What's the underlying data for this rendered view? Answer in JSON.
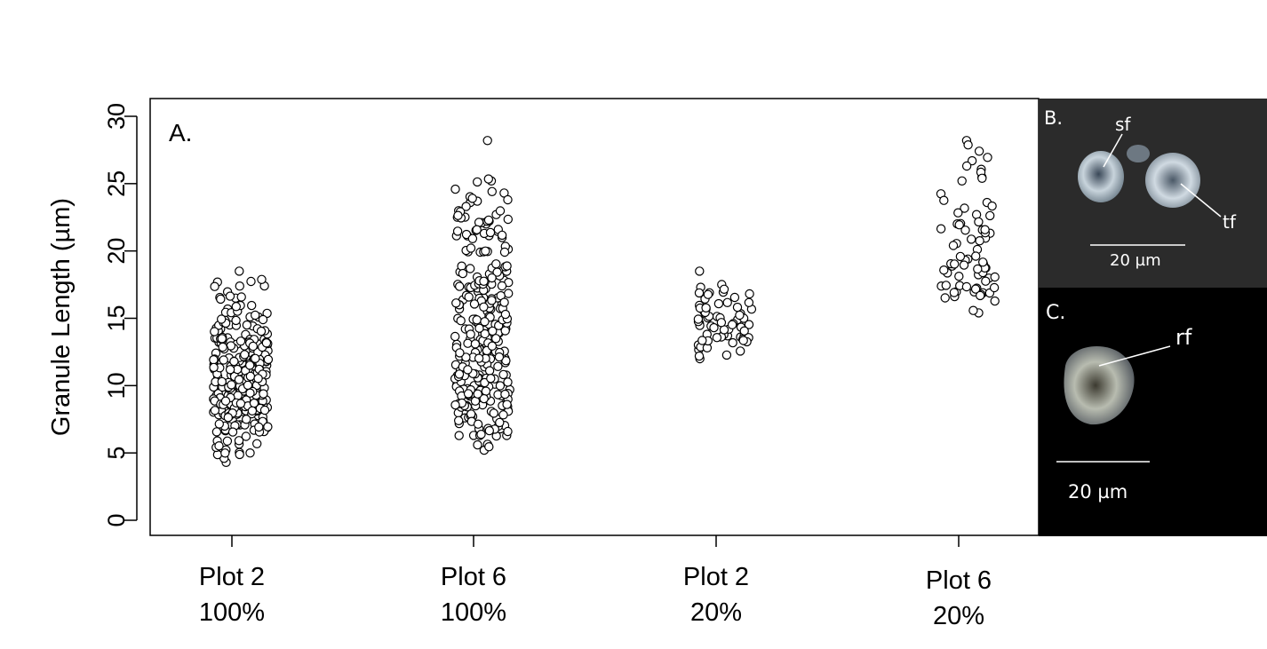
{
  "chart_data": {
    "type": "scatter",
    "panel_label": "A.",
    "ylabel": "Granule Length (µm)",
    "xlabel": "",
    "ylim": [
      -1.5,
      31.5
    ],
    "yticks": [
      0,
      5,
      10,
      15,
      20,
      25,
      30
    ],
    "grid": false,
    "legend": "none",
    "marker": "open circle",
    "categories": [
      {
        "name": "Plot 2",
        "sub": "100%"
      },
      {
        "name": "Plot 6",
        "sub": "100%"
      },
      {
        "name": "Plot 2",
        "sub": "20%"
      },
      {
        "name": "Plot 6",
        "sub": "20%"
      }
    ],
    "groups": [
      {
        "n": 300,
        "min": 4.3,
        "max": 18.5,
        "mode": 8.5,
        "notable": [
          4.3,
          4.6,
          5.0,
          17.4,
          16.5,
          18.5
        ]
      },
      {
        "n": 290,
        "min": 5.2,
        "max": 28.2,
        "mode": 9.5,
        "notable": [
          5.2,
          5.6,
          6.3,
          22.7,
          23.6,
          25.2,
          28.2
        ]
      },
      {
        "n": 70,
        "min": 12.0,
        "max": 18.5,
        "mode": 13.5,
        "notable": [
          12.0,
          17.3,
          18.5
        ]
      },
      {
        "n": 75,
        "min": 15.4,
        "max": 28.2,
        "mode": 17.0,
        "notable": [
          15.4,
          22.7,
          23.6,
          25.2,
          28.2
        ]
      }
    ]
  },
  "micrographs": {
    "b": {
      "label": "B.",
      "annotations": [
        "sf",
        "tf"
      ],
      "scale": "20 µm"
    },
    "c": {
      "label": "C.",
      "annotations": [
        "rf"
      ],
      "scale": "20 µm"
    }
  }
}
